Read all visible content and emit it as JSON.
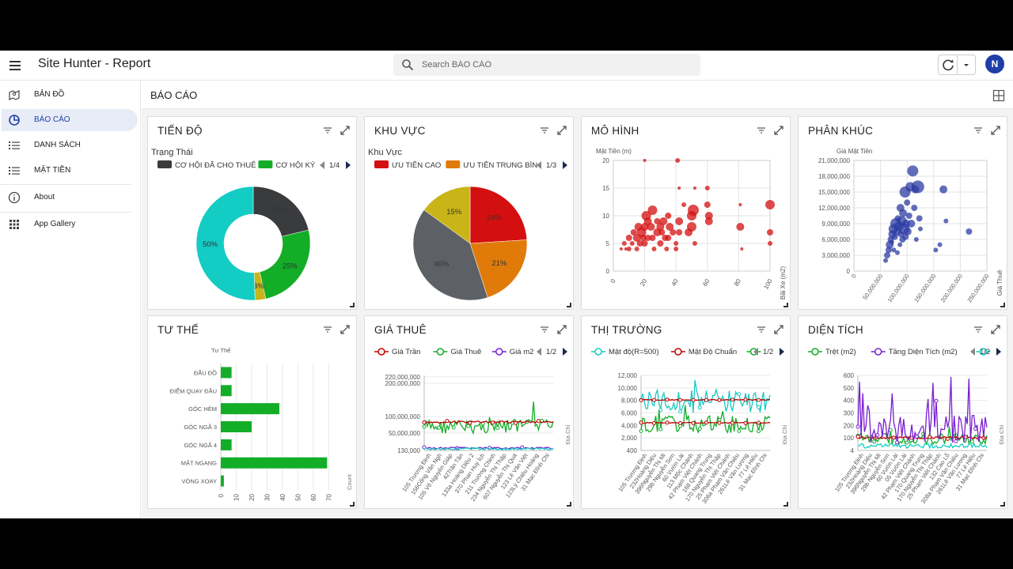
{
  "app": {
    "title": "Site Hunter - Report"
  },
  "search": {
    "placeholder": "Search BÁO CÁO"
  },
  "user": {
    "avatar_letter": "N"
  },
  "sidebar": {
    "items": [
      {
        "label": "BẢN ĐỒ",
        "icon": "map-icon",
        "active": false
      },
      {
        "label": "BÁO CÁO",
        "icon": "report-chart-icon",
        "active": true
      },
      {
        "label": "DANH SÁCH",
        "icon": "list-icon",
        "active": false
      },
      {
        "label": "MẶT TIỀN",
        "icon": "list-icon",
        "active": false
      },
      {
        "label": "About",
        "icon": "info-icon",
        "active": false
      },
      {
        "label": "App Gallery",
        "icon": "app-grid-icon",
        "active": false
      }
    ]
  },
  "main": {
    "title": "BÁO CÁO"
  },
  "cards": [
    {
      "title": "TIẾN ĐỘ"
    },
    {
      "title": "KHU VỰC"
    },
    {
      "title": "MÔ HÌNH"
    },
    {
      "title": "PHÂN KHÚC"
    },
    {
      "title": "TƯ THẾ"
    },
    {
      "title": "GIÁ THUÊ"
    },
    {
      "title": "THỊ TRƯỜNG"
    },
    {
      "title": "DIỆN TÍCH"
    }
  ],
  "chart_data": [
    {
      "type": "pie",
      "variant": "donut",
      "title": "Trạng Thái",
      "legend": [
        "CƠ HỘI ĐÃ CHO THUÊ",
        "CƠ HỘI KÝ"
      ],
      "legend_page": "1/4",
      "slices": [
        {
          "value": 21,
          "label": "21%",
          "color": "#3a3b3d"
        },
        {
          "value": 25,
          "label": "25%",
          "color": "#13ad28"
        },
        {
          "value": 3,
          "label": "3%",
          "color": "#c8b51a"
        },
        {
          "value": 50,
          "label": "50%",
          "color": "#13ccc4"
        }
      ]
    },
    {
      "type": "pie",
      "title": "Khu Vực",
      "legend": [
        "ƯU TIÊN CAO",
        "ƯU TIÊN TRUNG BÌN"
      ],
      "legend_page": "1/3",
      "slices": [
        {
          "value": 24,
          "label": "24%",
          "color": "#d40f0f"
        },
        {
          "value": 21,
          "label": "21%",
          "color": "#e07b0a"
        },
        {
          "value": 40,
          "label": "40%",
          "color": "#5d6166"
        },
        {
          "value": 15,
          "label": "15%",
          "color": "#c9b518"
        }
      ]
    },
    {
      "type": "scatter",
      "variant": "bubble",
      "ylabel": "Mặt Tiền (m)",
      "xlabel": "Bãi Xe (m2)",
      "color": "#d40f0f",
      "xlim": [
        0,
        100
      ],
      "ylim": [
        0,
        20
      ],
      "xticks": [
        0,
        20,
        40,
        60,
        80,
        100
      ],
      "yticks": [
        0,
        5,
        10,
        15,
        20
      ],
      "points": [
        [
          5,
          4,
          2
        ],
        [
          7,
          5,
          3
        ],
        [
          8,
          4,
          2
        ],
        [
          10,
          6,
          4
        ],
        [
          10,
          4,
          3
        ],
        [
          12,
          5,
          3
        ],
        [
          13,
          7,
          4
        ],
        [
          15,
          6,
          5
        ],
        [
          15,
          4,
          3
        ],
        [
          16,
          8,
          5
        ],
        [
          17,
          5,
          4
        ],
        [
          18,
          7,
          6
        ],
        [
          19,
          6,
          4
        ],
        [
          20,
          8,
          5
        ],
        [
          20,
          5,
          4
        ],
        [
          20,
          20,
          2
        ],
        [
          21,
          10,
          6
        ],
        [
          22,
          9,
          5
        ],
        [
          22,
          6,
          4
        ],
        [
          24,
          8,
          5
        ],
        [
          25,
          11,
          6
        ],
        [
          25,
          6,
          4
        ],
        [
          26,
          4,
          3
        ],
        [
          28,
          7,
          5
        ],
        [
          28,
          9,
          4
        ],
        [
          30,
          5,
          4
        ],
        [
          30,
          8,
          5
        ],
        [
          31,
          7,
          4
        ],
        [
          32,
          9,
          5
        ],
        [
          33,
          6,
          4
        ],
        [
          34,
          4,
          3
        ],
        [
          35,
          10,
          4
        ],
        [
          35,
          6,
          4
        ],
        [
          36,
          8,
          5
        ],
        [
          38,
          7,
          4
        ],
        [
          40,
          5,
          3
        ],
        [
          40,
          4,
          3
        ],
        [
          41,
          20,
          3
        ],
        [
          42,
          15,
          2
        ],
        [
          42,
          9,
          5
        ],
        [
          42,
          7,
          4
        ],
        [
          45,
          12,
          3
        ],
        [
          48,
          7,
          5
        ],
        [
          50,
          8,
          6
        ],
        [
          50,
          10,
          6
        ],
        [
          51,
          11,
          7
        ],
        [
          52,
          5,
          3
        ],
        [
          52,
          15,
          2
        ],
        [
          60,
          15,
          3
        ],
        [
          60,
          12,
          4
        ],
        [
          61,
          10,
          5
        ],
        [
          61,
          9,
          5
        ],
        [
          81,
          12,
          2
        ],
        [
          81,
          8,
          5
        ],
        [
          82,
          4,
          2
        ],
        [
          100,
          12,
          6
        ],
        [
          100,
          7,
          4
        ],
        [
          100,
          5,
          3
        ]
      ]
    },
    {
      "type": "scatter",
      "variant": "bubble",
      "ylabel": "Giá Mặt Tiền",
      "xlabel": "Giá Thuê",
      "color": "#2d3ca3",
      "xlim": [
        0,
        260000000
      ],
      "ylim": [
        0,
        21000000
      ],
      "xticks": [
        "0",
        "50,000,000",
        "100,000,000",
        "150,000,000",
        "200,000,000",
        "250,000,000"
      ],
      "yticks": [
        "0",
        "3,000,000",
        "6,000,000",
        "9,000,000",
        "12,000,000",
        "15,000,000",
        "18,000,000",
        "21,000,000"
      ],
      "points": [
        [
          62000000.0,
          2000000.0,
          3
        ],
        [
          65000000.0,
          3000000.0,
          4
        ],
        [
          68000000.0,
          4000000.0,
          4
        ],
        [
          70000000.0,
          5000000.0,
          5
        ],
        [
          72000000.0,
          6000000.0,
          4
        ],
        [
          74000000.0,
          5500000.0,
          3
        ],
        [
          75000000.0,
          7000000.0,
          5
        ],
        [
          77000000.0,
          8000000.0,
          6
        ],
        [
          78000000.0,
          4000000.0,
          3
        ],
        [
          80000000.0,
          6500000.0,
          4
        ],
        [
          82000000.0,
          9000000.0,
          7
        ],
        [
          84000000.0,
          7500000.0,
          5
        ],
        [
          85000000.0,
          3500000.0,
          3
        ],
        [
          86000000.0,
          10000000.0,
          4
        ],
        [
          88000000.0,
          8500000.0,
          6
        ],
        [
          90000000.0,
          5000000.0,
          3
        ],
        [
          91000000.0,
          12000000.0,
          5
        ],
        [
          92000000.0,
          7000000.0,
          4
        ],
        [
          94000000.0,
          9500000.0,
          6
        ],
        [
          95000000.0,
          6000000.0,
          4
        ],
        [
          96000000.0,
          11000000.0,
          5
        ],
        [
          98000000.0,
          8000000.0,
          7
        ],
        [
          100000000.0,
          15000000.0,
          7
        ],
        [
          101000000.0,
          6500000.0,
          4
        ],
        [
          102000000.0,
          9000000.0,
          5
        ],
        [
          104000000.0,
          13000000.0,
          4
        ],
        [
          105000000.0,
          7500000.0,
          5
        ],
        [
          108000000.0,
          10500000.0,
          4
        ],
        [
          110000000.0,
          16000000.0,
          6
        ],
        [
          112000000.0,
          9000000.0,
          5
        ],
        [
          115000000.0,
          19000000.0,
          7
        ],
        [
          118000000.0,
          12000000.0,
          4
        ],
        [
          120000000.0,
          15500000.0,
          5
        ],
        [
          122000000.0,
          6000000.0,
          3
        ],
        [
          125000000.0,
          16000000.0,
          8
        ],
        [
          128000000.0,
          10000000.0,
          4
        ],
        [
          130000000.0,
          8000000.0,
          3
        ],
        [
          160000000.0,
          4000000.0,
          3
        ],
        [
          168000000.0,
          5000000.0,
          3
        ],
        [
          175000000.0,
          15500000.0,
          5
        ],
        [
          180000000.0,
          9500000.0,
          3
        ],
        [
          225000000.0,
          7500000.0,
          4
        ]
      ]
    },
    {
      "type": "bar",
      "orientation": "horizontal",
      "title": "Tư Thế",
      "xlabel": "Count",
      "color": "#13ad28",
      "categories": [
        "ĐẦU ĐỒ",
        "ĐIỂM QUAY ĐẦU",
        "GÓC HẺM",
        "GÓC NGÃ 3",
        "GÓC NGÃ 4",
        "MẶT NGANG",
        "VÒNG XOAY"
      ],
      "values": [
        7,
        7,
        38,
        20,
        7,
        69,
        2
      ],
      "xlim": [
        0,
        75
      ],
      "xticks": [
        0,
        10,
        20,
        30,
        40,
        50,
        60,
        70
      ]
    },
    {
      "type": "line",
      "xlabel": "Địa Chỉ",
      "legend_page": "1/2",
      "series": [
        {
          "name": "Giá Trần",
          "color": "#c00000"
        },
        {
          "name": "Giá Thuê",
          "color": "#13ad28"
        },
        {
          "name": "Giá m2",
          "color": "#7a1fd1"
        }
      ],
      "yticks": [
        "130,000",
        "50,000,000",
        "100,000,000",
        "200,000,000",
        "220,000,000"
      ],
      "categories": [
        "105 Trương Định",
        "156Cống Văn Ngh",
        "105 Võ Nguyên Giáp",
        "42Trần Tân",
        "133a Hoàng Diệu 2",
        "370 Phan Huy Ích",
        "211 Trường Chinh",
        "234 Nguyễn Thị Thập",
        "607 Nguyễn Thị Quá",
        "123 Lê Văn Việt",
        "123Lý Chiêu Hoàng",
        "31 Mạc Đĩnh Chi"
      ]
    },
    {
      "type": "line",
      "xlabel": "Địa Chỉ",
      "legend_page": "1/2",
      "series": [
        {
          "name": "Mật độ(R=500)",
          "color": "#13ccc4"
        },
        {
          "name": "Mật Độ Chuẩn",
          "color": "#c00000"
        },
        {
          "name": "",
          "color": "#13ad28"
        }
      ],
      "yticks": [
        "400",
        "2,000",
        "4,000",
        "6,000",
        "8,000",
        "10,000",
        "12,000"
      ],
      "categories": [
        "105 Trương Định",
        "232Hoàng Diệu",
        "396Nguyễn Thị Mi",
        "29b Nguyễn Sơn",
        "60 Vườn Lài",
        "113 Mộc Chánh",
        "42 Phạm Việt Chánh",
        "168 Quang Trung",
        "170 Nguyễn Thị Thập",
        "25 Phạm Viết Chánh",
        "308a Phạm Văn Chiêu",
        "261Lê Văn Lương",
        "77 Lê Hiếu",
        "31 Mạc Đĩnh Chi"
      ]
    },
    {
      "type": "line",
      "xlabel": "Địa Chỉ",
      "legend_page": "1/2",
      "series": [
        {
          "name": "Trệt (m2)",
          "color": "#13ad28"
        },
        {
          "name": "Tầng Diện Tích (m2)",
          "color": "#7a1fd1"
        },
        {
          "name": "",
          "color": "#13ccc4"
        }
      ],
      "yticks": [
        "4",
        "100",
        "200",
        "300",
        "400",
        "500",
        "600"
      ],
      "categories": [
        "105 Trương Định",
        "232Hoàng Diệu",
        "396Nguyễn Thị Mi",
        "29b Nguyễn Sơn",
        "60 Vườn Lài",
        "05 Vườn Lài",
        "42 Phạm Viết Chánh",
        "170 Quang Trung",
        "170 Nguyễn Thị Thập",
        "25 Phạm Viết Chánh",
        "132 Cao Lỗ",
        "308a Phạm Văn Chiêu",
        "261Lê Văn Lương",
        "77 Lê Hiếu",
        "31 Mạc Đĩnh Chi"
      ]
    }
  ]
}
